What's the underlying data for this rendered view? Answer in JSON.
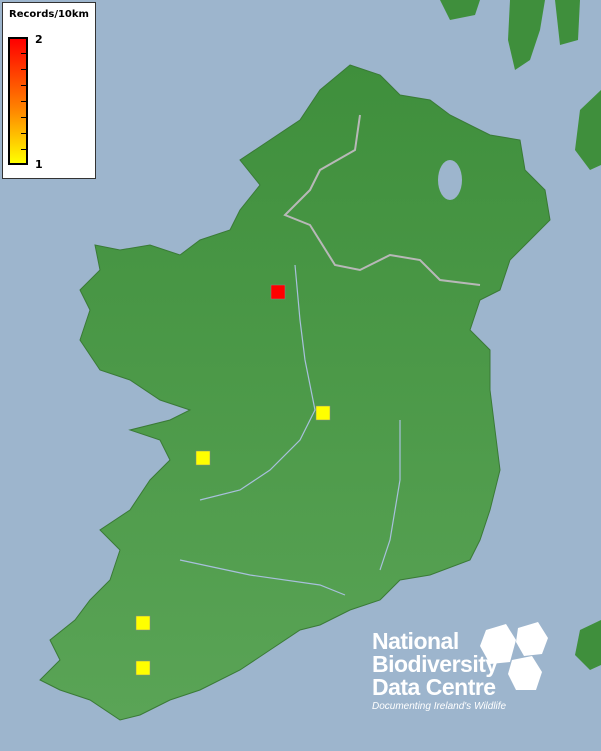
{
  "legend": {
    "title": "Records/10km",
    "max_label": "2",
    "min_label": "1",
    "color_max": "#ff0000",
    "color_min": "#ffff00"
  },
  "colors": {
    "sea": "#9db5cd",
    "land": "#4e9a4a",
    "border": "#b0b0b0",
    "rivers": "#a8c0dc"
  },
  "records": [
    {
      "count": 2
    },
    {
      "count": 1
    },
    {
      "count": 1
    },
    {
      "count": 1
    },
    {
      "count": 1
    }
  ],
  "logo": {
    "line1": "National",
    "line2": "Biodiversity",
    "line3": "Data Centre",
    "tagline": "Documenting Ireland's Wildlife"
  }
}
